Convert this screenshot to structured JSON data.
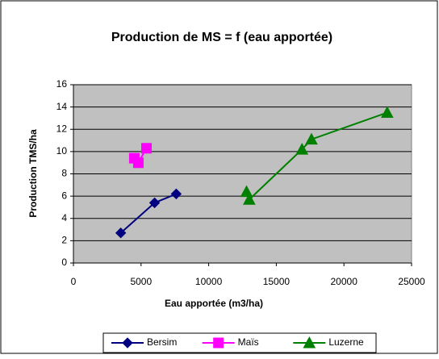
{
  "chart_data": {
    "type": "line",
    "title": "Production de MS = f (eau apportée)",
    "xlabel": "Eau apportée (m3/ha)",
    "ylabel": "Production TMS/ha",
    "xlim": [
      0,
      25000
    ],
    "xticks": [
      0,
      5000,
      10000,
      15000,
      20000,
      25000
    ],
    "ylim": [
      0,
      16
    ],
    "yticks": [
      0,
      2,
      4,
      6,
      8,
      10,
      12,
      14,
      16
    ],
    "grid": true,
    "legend": "bottom",
    "series": [
      {
        "name": "Bersim",
        "color": "#000080",
        "marker": "diamond",
        "x": [
          3500,
          6000,
          7600
        ],
        "values": [
          2.7,
          5.4,
          6.2
        ]
      },
      {
        "name": "Maïs",
        "color": "#ff00ff",
        "marker": "square",
        "x": [
          4500,
          4800,
          5400
        ],
        "values": [
          9.4,
          9.0,
          10.3
        ]
      },
      {
        "name": "Luzerne",
        "color": "#008000",
        "marker": "triangle",
        "x": [
          12800,
          13000,
          16900,
          17600,
          23200
        ],
        "values": [
          6.4,
          5.7,
          10.2,
          11.1,
          13.5
        ]
      }
    ]
  }
}
